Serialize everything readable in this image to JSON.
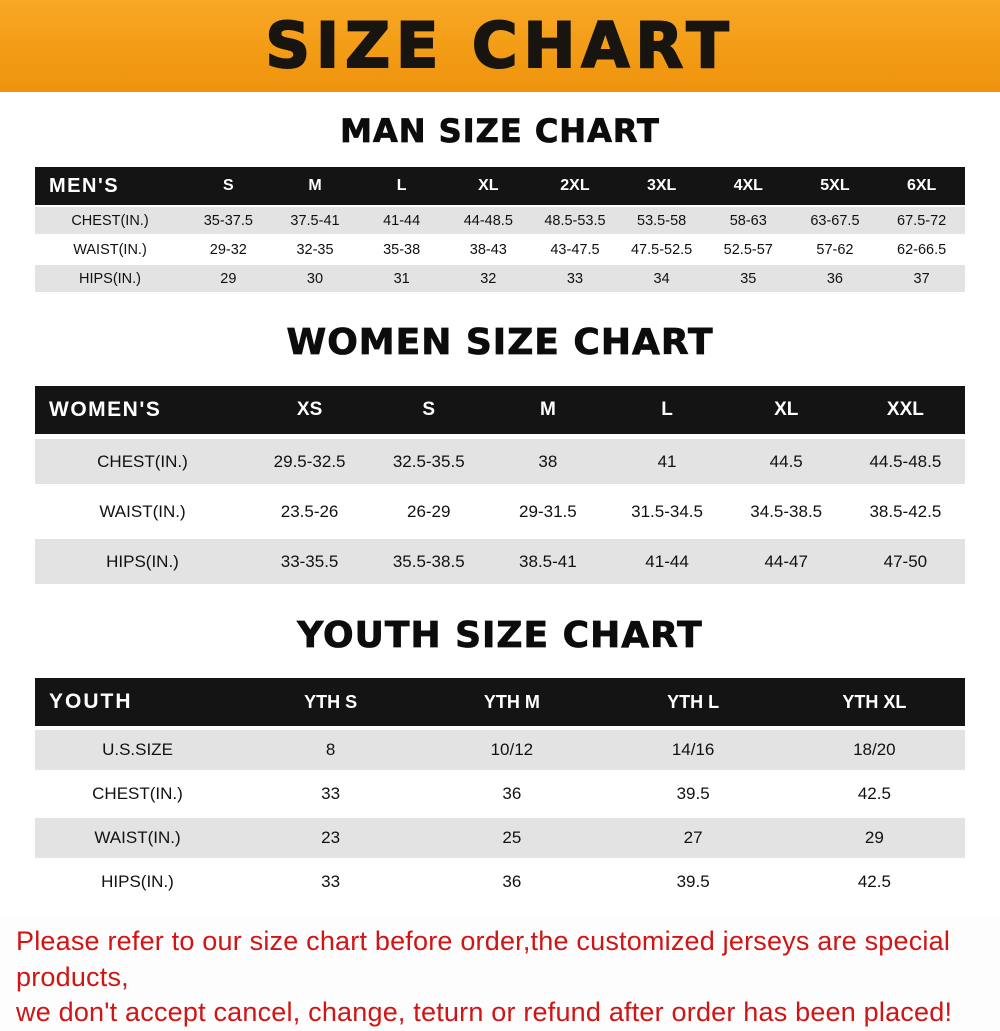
{
  "banner": {
    "title": "SIZE CHART",
    "background_color": "#f39c15",
    "text_color": "#181410"
  },
  "sections": [
    {
      "heading": "MAN SIZE CHART",
      "table": {
        "header_label": "MEN'S",
        "columns": [
          "S",
          "M",
          "L",
          "XL",
          "2XL",
          "3XL",
          "4XL",
          "5XL",
          "6XL"
        ],
        "rows": [
          {
            "label": "CHEST(IN.)",
            "values": [
              "35-37.5",
              "37.5-41",
              "41-44",
              "44-48.5",
              "48.5-53.5",
              "53.5-58",
              "58-63",
              "63-67.5",
              "67.5-72"
            ]
          },
          {
            "label": "WAIST(IN.)",
            "values": [
              "29-32",
              "32-35",
              "35-38",
              "38-43",
              "43-47.5",
              "47.5-52.5",
              "52.5-57",
              "57-62",
              "62-66.5"
            ]
          },
          {
            "label": "HIPS(IN.)",
            "values": [
              "29",
              "30",
              "31",
              "32",
              "33",
              "34",
              "35",
              "36",
              "37"
            ]
          }
        ]
      }
    },
    {
      "heading": "WOMEN SIZE CHART",
      "table": {
        "header_label": "WOMEN'S",
        "columns": [
          "XS",
          "S",
          "M",
          "L",
          "XL",
          "XXL"
        ],
        "rows": [
          {
            "label": "CHEST(IN.)",
            "values": [
              "29.5-32.5",
              "32.5-35.5",
              "38",
              "41",
              "44.5",
              "44.5-48.5"
            ]
          },
          {
            "label": "WAIST(IN.)",
            "values": [
              "23.5-26",
              "26-29",
              "29-31.5",
              "31.5-34.5",
              "34.5-38.5",
              "38.5-42.5"
            ]
          },
          {
            "label": "HIPS(IN.)",
            "values": [
              "33-35.5",
              "35.5-38.5",
              "38.5-41",
              "41-44",
              "44-47",
              "47-50"
            ]
          }
        ]
      }
    },
    {
      "heading": "YOUTH SIZE CHART",
      "table": {
        "header_label": "YOUTH",
        "columns": [
          "YTH S",
          "YTH M",
          "YTH L",
          "YTH XL"
        ],
        "rows": [
          {
            "label": "U.S.SIZE",
            "values": [
              "8",
              "10/12",
              "14/16",
              "18/20"
            ]
          },
          {
            "label": "CHEST(IN.)",
            "values": [
              "33",
              "36",
              "39.5",
              "42.5"
            ]
          },
          {
            "label": "WAIST(IN.)",
            "values": [
              "23",
              "25",
              "27",
              "29"
            ]
          },
          {
            "label": "HIPS(IN.)",
            "values": [
              "33",
              "36",
              "39.5",
              "42.5"
            ]
          }
        ]
      }
    }
  ],
  "footer": {
    "text_color": "#d11414",
    "lines": [
      "Please refer to our size chart before order,the customized jerseys are special products,",
      "we don't accept cancel, change, teturn or refund after order has been placed!"
    ]
  }
}
